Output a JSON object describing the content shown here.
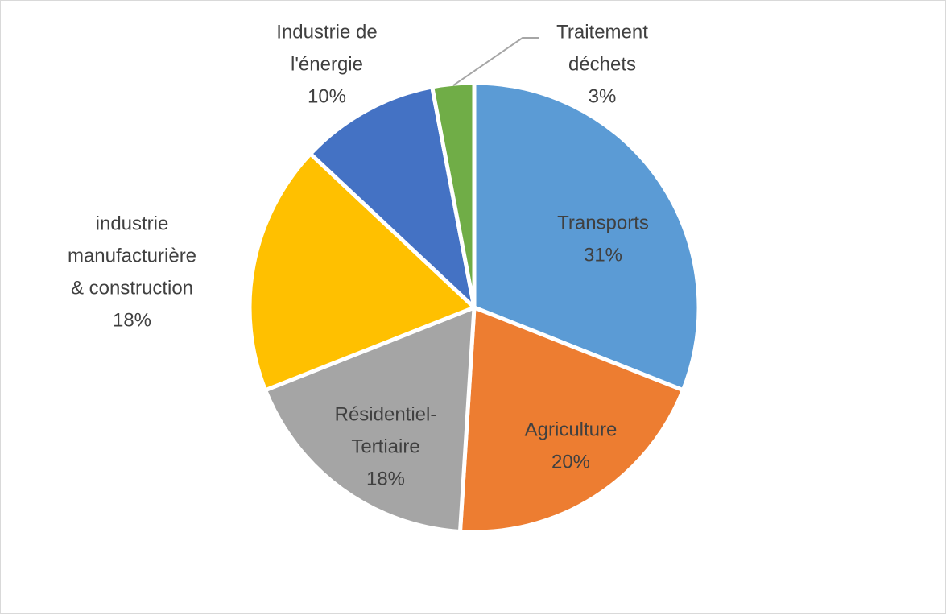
{
  "chart_data": {
    "type": "pie",
    "title": "",
    "legend": "none",
    "categories": [
      "Transports",
      "Agriculture",
      "Résidentiel-Tertiaire",
      "industrie manufacturière & construction",
      "Industrie de l'énergie",
      "Traitement déchets"
    ],
    "values": [
      31,
      20,
      18,
      18,
      10,
      3
    ],
    "labels": [
      {
        "lines": [
          "Transports",
          "31%"
        ]
      },
      {
        "lines": [
          "Agriculture",
          "20%"
        ]
      },
      {
        "lines": [
          "Résidentiel-",
          "Tertiaire",
          "18%"
        ]
      },
      {
        "lines": [
          "industrie",
          "manufacturière",
          "& construction",
          "18%"
        ]
      },
      {
        "lines": [
          "Industrie de",
          "l'énergie",
          "10%"
        ]
      },
      {
        "lines": [
          "Traitement",
          "déchets",
          "3%"
        ]
      }
    ],
    "colors": [
      "#5B9BD5",
      "#ED7D31",
      "#A5A5A5",
      "#FFC000",
      "#4472C4",
      "#70AD47"
    ]
  }
}
